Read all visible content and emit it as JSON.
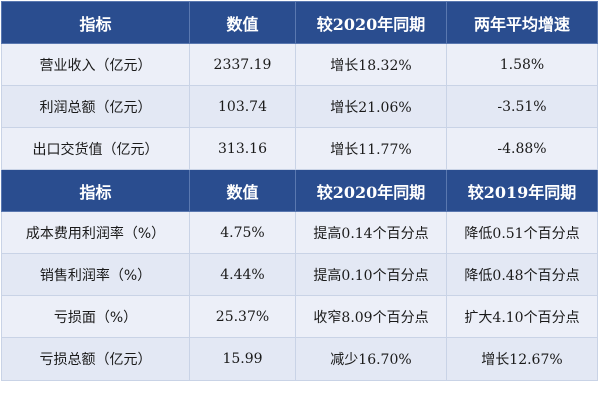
{
  "table1": {
    "headers": [
      "指标",
      "数值",
      "较2020年同期",
      "两年平均增速"
    ],
    "rows": [
      [
        "营业收入（亿元）",
        "2337.19",
        "增长18.32%",
        "1.58%"
      ],
      [
        "利润总额（亿元）",
        "103.74",
        "增长21.06%",
        "-3.51%"
      ],
      [
        "出口交货值（亿元）",
        "313.16",
        "增长11.77%",
        "-4.88%"
      ]
    ]
  },
  "table2": {
    "headers": [
      "指标",
      "数值",
      "较2020年同期",
      "较2019年同期"
    ],
    "rows": [
      [
        "成本费用利润率（%）",
        "4.75%",
        "提高0.14个百分点",
        "降低0.51个百分点"
      ],
      [
        "销售利润率（%）",
        "4.44%",
        "提高0.10个百分点",
        "降低0.48个百分点"
      ],
      [
        "亏损面（%）",
        "25.37%",
        "收窄8.09个百分点",
        "扩大4.10个百分点"
      ],
      [
        "亏损总额（亿元）",
        "15.99",
        "减少16.70%",
        "增长12.67%"
      ]
    ]
  },
  "colors": {
    "header_bg": "#2a4d8f",
    "header_text": "#ffffff",
    "row_bg": "#eceff8",
    "border": "#c9d3e6"
  }
}
